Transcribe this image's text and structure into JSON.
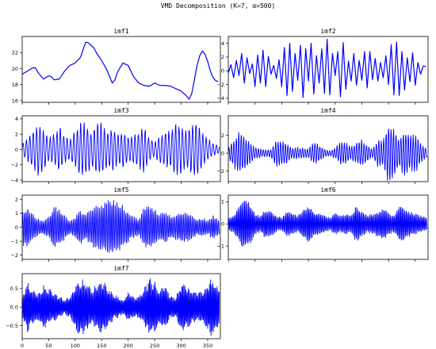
{
  "title": "VMD Decomposition (K=7, α=500)",
  "chart_data": [
    {
      "type": "line",
      "title": "imf1",
      "series_color": "#0000ff",
      "xlim": [
        0,
        374
      ],
      "ylim": [
        15.8,
        24.0
      ],
      "yticks": [
        16,
        18,
        20,
        22
      ],
      "x_tick_labels_shown": false,
      "x": [
        0,
        10,
        20,
        25,
        30,
        40,
        50,
        55,
        60,
        70,
        80,
        90,
        100,
        110,
        115,
        120,
        125,
        130,
        135,
        140,
        150,
        160,
        170,
        175,
        180,
        190,
        200,
        210,
        220,
        230,
        240,
        250,
        260,
        270,
        280,
        290,
        300,
        310,
        315,
        320,
        325,
        330,
        335,
        340,
        345,
        350,
        355,
        360,
        365,
        370
      ],
      "values": [
        19.3,
        19.7,
        20.1,
        20.1,
        19.5,
        18.7,
        19.1,
        19.0,
        18.6,
        18.7,
        19.7,
        20.4,
        20.7,
        21.4,
        22.4,
        23.3,
        23.2,
        22.9,
        22.6,
        22.0,
        21.0,
        19.8,
        18.2,
        18.6,
        19.6,
        20.7,
        20.4,
        19.0,
        18.2,
        17.9,
        17.8,
        18.2,
        17.9,
        17.9,
        17.8,
        17.5,
        17.2,
        16.6,
        16.2,
        16.9,
        18.6,
        20.4,
        21.6,
        22.2,
        21.8,
        20.9,
        19.7,
        18.9,
        18.5,
        18.4
      ]
    },
    {
      "type": "line",
      "title": "imf2",
      "series_color": "#0000ff",
      "xlim": [
        0,
        374
      ],
      "ylim": [
        -4.6,
        5.0
      ],
      "yticks": [
        -4,
        -2,
        0,
        2,
        4
      ],
      "x_tick_labels_shown": false,
      "x": [
        0,
        5,
        10,
        15,
        20,
        25,
        30,
        35,
        40,
        45,
        50,
        55,
        60,
        65,
        70,
        75,
        80,
        85,
        90,
        95,
        100,
        105,
        110,
        115,
        120,
        125,
        130,
        135,
        140,
        145,
        150,
        155,
        160,
        165,
        170,
        175,
        180,
        185,
        190,
        195,
        200,
        205,
        210,
        215,
        220,
        225,
        230,
        235,
        240,
        245,
        250,
        255,
        260,
        265,
        270,
        275,
        280,
        285,
        290,
        295,
        300,
        305,
        310,
        315,
        320,
        325,
        330,
        335,
        340,
        345,
        350,
        355,
        360,
        365,
        370
      ],
      "values": [
        -0.3,
        0.9,
        -1.0,
        1.5,
        -0.7,
        2.5,
        -1.8,
        1.9,
        -0.4,
        1.0,
        -2.3,
        2.3,
        -1.8,
        3.0,
        -2.3,
        2.1,
        -0.5,
        0.8,
        -1.1,
        1.6,
        -2.3,
        3.4,
        -3.6,
        4.0,
        -3.0,
        2.5,
        -1.4,
        3.7,
        -3.9,
        3.2,
        -1.5,
        4.0,
        -3.4,
        2.2,
        -1.8,
        3.2,
        -3.3,
        4.6,
        -3.5,
        2.5,
        -0.7,
        2.8,
        -3.8,
        4.1,
        -2.7,
        1.4,
        -1.5,
        2.5,
        -2.1,
        1.5,
        -1.4,
        2.8,
        -2.5,
        2.8,
        -1.3,
        1.8,
        -1.5,
        1.2,
        -1.0,
        2.2,
        -2.0,
        3.8,
        -3.5,
        4.2,
        -3.6,
        2.8,
        -2.8,
        1.9,
        -1.6,
        2.6,
        -2.1,
        1.2,
        -0.5,
        0.7,
        0.6
      ]
    },
    {
      "type": "line",
      "title": "imf3",
      "series_color": "#0000ff",
      "xlim": [
        0,
        374
      ],
      "ylim": [
        -4.2,
        4.4
      ],
      "yticks": [
        -4,
        -2,
        0,
        2,
        4
      ],
      "x_tick_labels_shown": false,
      "period": 6.4,
      "envelope_x": [
        0,
        10,
        20,
        30,
        40,
        50,
        60,
        70,
        80,
        90,
        100,
        110,
        120,
        130,
        140,
        150,
        160,
        170,
        180,
        190,
        200,
        210,
        220,
        230,
        240,
        250,
        260,
        270,
        280,
        290,
        300,
        310,
        320,
        330,
        340,
        350,
        360,
        370
      ],
      "envelope": [
        0.9,
        1.5,
        2.6,
        3.7,
        2.8,
        1.7,
        2.1,
        3.3,
        1.8,
        1.3,
        2.5,
        3.8,
        3.6,
        2.4,
        3.5,
        3.8,
        2.6,
        3.0,
        2.2,
        2.5,
        1.8,
        1.9,
        2.4,
        3.3,
        1.5,
        1.0,
        1.8,
        2.6,
        2.5,
        3.5,
        3.3,
        2.6,
        3.4,
        3.7,
        2.3,
        1.5,
        0.9,
        0.6
      ]
    },
    {
      "type": "line",
      "title": "imf4",
      "series_color": "#0000ff",
      "xlim": [
        0,
        374
      ],
      "ylim": [
        -3.2,
        4.2
      ],
      "yticks": [
        -2,
        0,
        2
      ],
      "x_tick_labels_shown": false,
      "period": 4.6,
      "envelope_x": [
        0,
        10,
        20,
        30,
        40,
        50,
        60,
        70,
        80,
        90,
        100,
        110,
        120,
        130,
        140,
        150,
        160,
        170,
        180,
        190,
        200,
        210,
        220,
        230,
        240,
        250,
        260,
        270,
        280,
        290,
        300,
        310,
        320,
        330,
        340,
        350,
        360,
        370
      ],
      "envelope": [
        0.6,
        1.6,
        2.5,
        2.0,
        1.2,
        0.7,
        0.5,
        0.4,
        0.5,
        1.6,
        1.4,
        1.2,
        0.6,
        0.7,
        0.6,
        0.5,
        1.3,
        1.0,
        0.5,
        0.3,
        0.6,
        1.4,
        1.2,
        0.8,
        1.3,
        1.6,
        1.0,
        0.5,
        1.6,
        1.5,
        3.6,
        3.0,
        1.7,
        2.8,
        2.1,
        2.3,
        1.2,
        0.6
      ]
    },
    {
      "type": "line",
      "title": "imf5",
      "series_color": "#0000ff",
      "xlim": [
        0,
        374
      ],
      "ylim": [
        -2.3,
        2.3
      ],
      "yticks": [
        -2,
        -1,
        0,
        1,
        2
      ],
      "x_tick_labels_shown": false,
      "period": 3.3,
      "envelope_x": [
        0,
        10,
        20,
        30,
        40,
        50,
        60,
        70,
        80,
        90,
        100,
        110,
        120,
        130,
        140,
        150,
        160,
        170,
        180,
        190,
        200,
        210,
        220,
        230,
        240,
        250,
        260,
        270,
        280,
        290,
        300,
        310,
        320,
        330,
        340,
        350,
        360,
        370
      ],
      "envelope": [
        1.3,
        1.5,
        1.0,
        0.6,
        0.5,
        0.8,
        1.6,
        1.4,
        0.9,
        0.5,
        0.8,
        1.3,
        1.0,
        1.4,
        1.6,
        1.8,
        2.0,
        2.1,
        1.8,
        1.6,
        1.1,
        0.8,
        0.6,
        1.5,
        1.7,
        1.3,
        1.0,
        1.2,
        0.8,
        0.9,
        1.2,
        1.1,
        0.9,
        0.6,
        0.7,
        0.5,
        0.9,
        0.6
      ]
    },
    {
      "type": "line",
      "title": "imf6",
      "series_color": "#0000ff",
      "xlim": [
        0,
        374
      ],
      "ylim": [
        -1.6,
        1.3
      ],
      "yticks": [
        -1,
        0,
        1
      ],
      "x_tick_labels_shown": false,
      "period": 2.5,
      "envelope_x": [
        0,
        10,
        20,
        30,
        40,
        50,
        60,
        70,
        80,
        90,
        100,
        110,
        120,
        130,
        140,
        150,
        160,
        170,
        180,
        190,
        200,
        210,
        220,
        230,
        240,
        250,
        260,
        270,
        280,
        290,
        300,
        310,
        320,
        330,
        340,
        350,
        360,
        370
      ],
      "envelope": [
        0.3,
        0.4,
        0.9,
        1.2,
        1.0,
        0.5,
        0.4,
        0.7,
        0.6,
        0.4,
        0.3,
        0.6,
        0.5,
        0.4,
        0.7,
        0.9,
        0.6,
        0.5,
        0.4,
        0.3,
        0.5,
        0.4,
        0.5,
        0.4,
        0.9,
        0.6,
        0.4,
        0.5,
        0.6,
        0.8,
        0.5,
        0.4,
        0.9,
        0.7,
        0.6,
        0.5,
        0.4,
        0.3
      ]
    },
    {
      "type": "line",
      "title": "imf7",
      "series_color": "#0000ff",
      "xlim": [
        0,
        374
      ],
      "ylim": [
        -0.85,
        0.9
      ],
      "yticks": [
        -0.5,
        0.0,
        0.5
      ],
      "ytick_labels": [
        "−0.5",
        "0.0",
        "0.5"
      ],
      "xticks": [
        0,
        50,
        100,
        150,
        200,
        250,
        300,
        350
      ],
      "xtick_labels": [
        "0",
        "50",
        "100",
        "150",
        "200",
        "250",
        "300",
        "350"
      ],
      "x_tick_labels_shown": true,
      "period": 2.1,
      "envelope_x": [
        0,
        10,
        20,
        30,
        40,
        50,
        60,
        70,
        80,
        90,
        100,
        110,
        120,
        130,
        140,
        150,
        160,
        170,
        180,
        190,
        200,
        210,
        220,
        230,
        240,
        250,
        260,
        270,
        280,
        290,
        300,
        310,
        320,
        330,
        340,
        350,
        360,
        370
      ],
      "envelope": [
        0.3,
        0.7,
        0.5,
        0.4,
        0.6,
        0.5,
        0.4,
        0.3,
        0.2,
        0.3,
        0.6,
        0.8,
        0.7,
        0.5,
        0.6,
        0.8,
        0.6,
        0.4,
        0.3,
        0.2,
        0.4,
        0.3,
        0.3,
        0.5,
        0.8,
        0.7,
        0.5,
        0.6,
        0.3,
        0.3,
        0.7,
        0.6,
        0.5,
        0.4,
        0.5,
        0.7,
        0.8,
        0.6
      ]
    }
  ]
}
